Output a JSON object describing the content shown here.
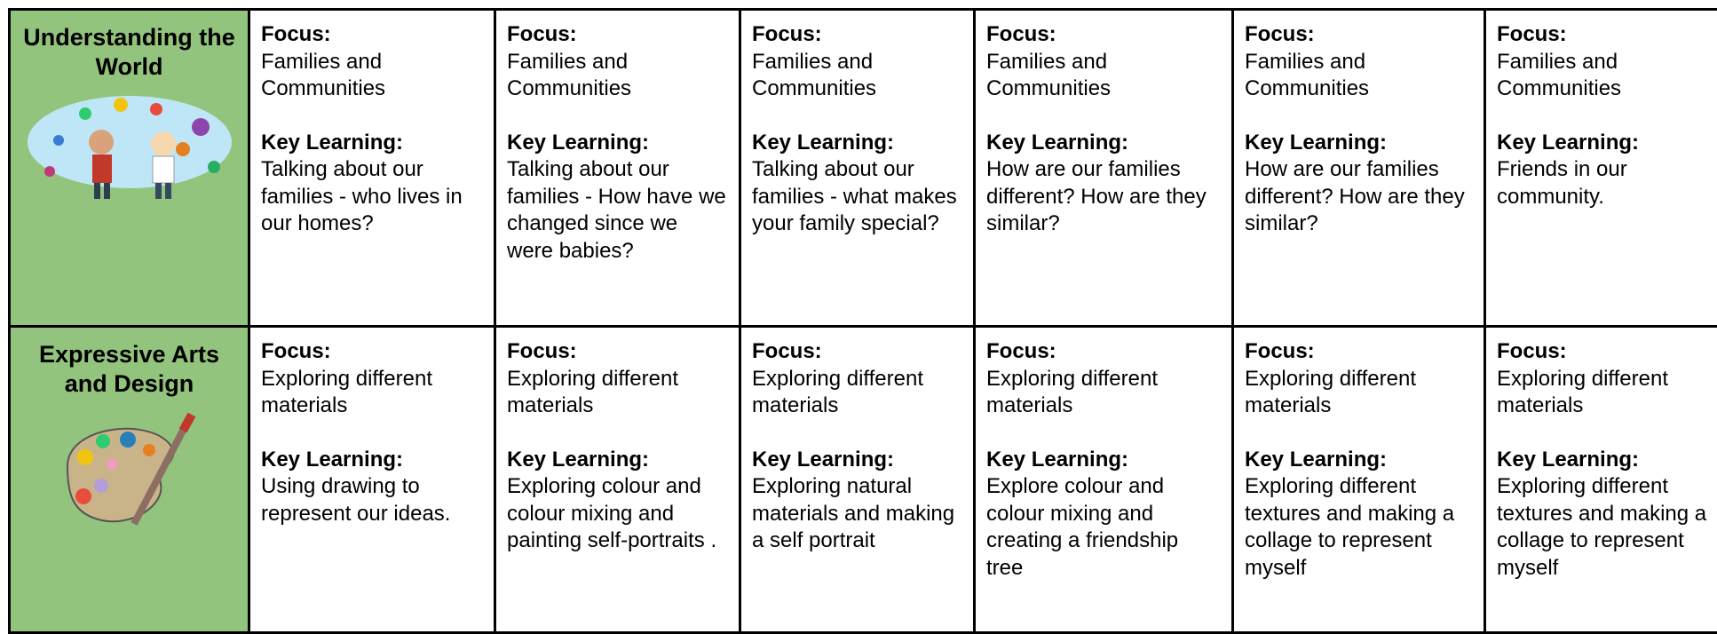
{
  "labels": {
    "focus": "Focus:",
    "key": "Key Learning:"
  },
  "rows": [
    {
      "subject": "Understanding the World",
      "cells": [
        {
          "focus": "Families and Communities",
          "key": "Talking about our families - who lives in our homes?"
        },
        {
          "focus": "Families and Communities",
          "key": "Talking about our families - How have we changed since we were babies?"
        },
        {
          "focus": "Families and Communities",
          "key": "Talking about our families - what makes your family special?"
        },
        {
          "focus": "Families and Communities",
          "key": "How are our families different? How are they similar?"
        },
        {
          "focus": "Families and Communities",
          "key": "How are our families different? How are they similar?"
        },
        {
          "focus": "Families and Communities",
          "key": "Friends in our community."
        }
      ]
    },
    {
      "subject": "Expressive Arts and Design",
      "cells": [
        {
          "focus": "Exploring different materials",
          "key": "Using drawing to represent our ideas."
        },
        {
          "focus": "Exploring different materials",
          "key": "Exploring colour and colour mixing and painting self-portraits ."
        },
        {
          "focus": "Exploring different materials",
          "key": "Exploring natural materials and making a self portrait"
        },
        {
          "focus": "Exploring different materials",
          "key": "Explore colour and colour mixing and creating a friendship tree"
        },
        {
          "focus": "Exploring different materials",
          "key": "Exploring different textures and making a collage to represent myself"
        },
        {
          "focus": "Exploring different materials",
          "key": "Exploring different textures and making a collage to represent myself"
        }
      ]
    }
  ]
}
